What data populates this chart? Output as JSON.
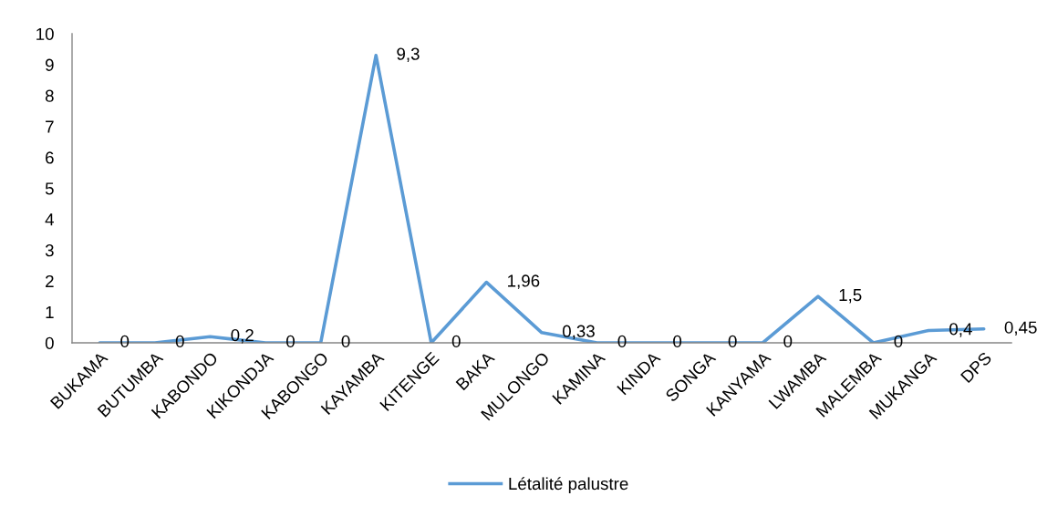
{
  "chart_data": {
    "type": "line",
    "categories": [
      "BUKAMA",
      "BUTUMBA",
      "KABONDO",
      "KIKONDJA",
      "KABONGO",
      "KAYAMBA",
      "KITENGE",
      "BAKA",
      "MULONGO",
      "KAMINA",
      "KINDA",
      "SONGA",
      "KANYAMA",
      "LWAMBA",
      "MALEMBA",
      "MUKANGA",
      "DPS"
    ],
    "series": [
      {
        "name": "Létalité palustre",
        "color": "#5b9bd5",
        "values": [
          0,
          0,
          0.2,
          0,
          0,
          9.3,
          0,
          1.96,
          0.33,
          0,
          0,
          0,
          0,
          1.5,
          0,
          0.4,
          0.45
        ],
        "value_labels": [
          "0",
          "0",
          "0,2",
          "0",
          "0",
          "9,3",
          "0",
          "1,96",
          "0,33",
          "0",
          "0",
          "0",
          "0",
          "1,5",
          "0",
          "0,4",
          "0,45"
        ]
      }
    ],
    "ylim": [
      0,
      10
    ],
    "yticks": [
      0,
      1,
      2,
      3,
      4,
      5,
      6,
      7,
      8,
      9,
      10
    ],
    "grid": false,
    "legend": "bottom",
    "line_style": "solid"
  }
}
